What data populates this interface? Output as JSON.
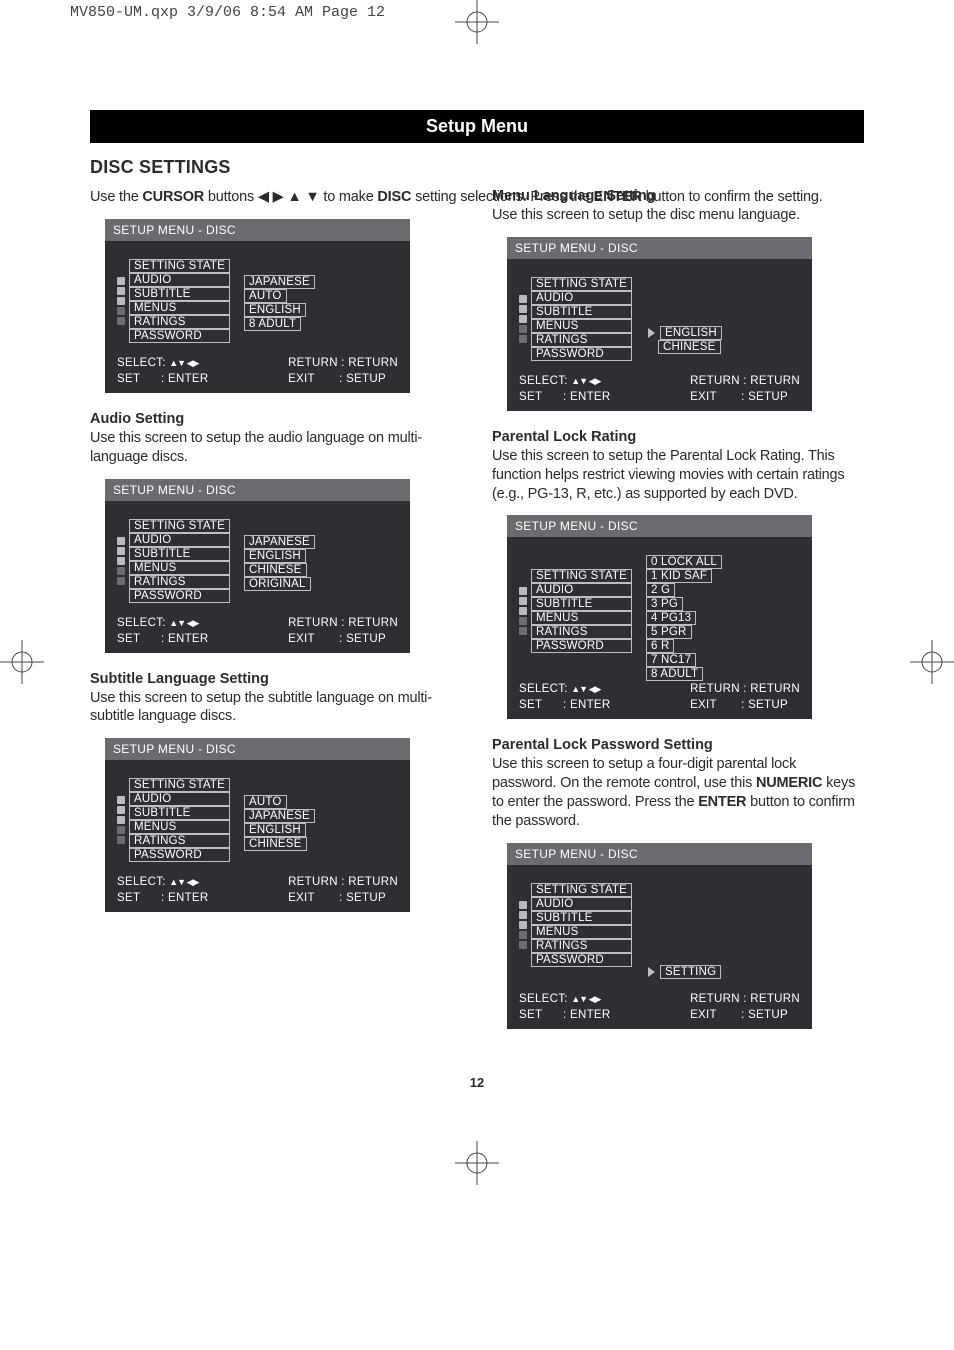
{
  "slug_line": "MV850-UM.qxp  3/9/06  8:54 AM  Page 12",
  "banner_title": "Setup Menu",
  "section_heading": "DISC SETTINGS",
  "intro_html": "Use the <b>CURSOR</b> buttons  ◀ ▶ ▲ ▼  to make <b>DISC</b> setting selections. Press the <b>ENTER</b> button to confirm the setting.",
  "page_number": "12",
  "osd_common": {
    "title": "SETUP MENU - DISC",
    "menu_header": "SETTING STATE",
    "menu_items": [
      "AUDIO",
      "SUBTITLE",
      "MENUS",
      "RATINGS",
      "PASSWORD"
    ],
    "bullet_dark_indices": [
      3,
      4
    ],
    "footer": {
      "select_label": "SELECT:",
      "select_arrows": "▲▼ ◀▶",
      "set_label": "SET",
      "set_value": ": ENTER",
      "return_label": "RETURN : RETURN",
      "exit_label": "EXIT",
      "exit_value": ": SETUP"
    }
  },
  "left": {
    "s1": {
      "values": [
        "JAPANESE",
        "AUTO",
        "ENGLISH",
        "8  ADULT"
      ],
      "values_top_index": 1,
      "arrow_at": null
    },
    "s2": {
      "head": "Audio Setting",
      "para": "Use this screen to setup the audio language on multi-language discs.",
      "values": [
        "JAPANESE",
        "ENGLISH",
        "CHINESE",
        "ORIGINAL"
      ],
      "values_top_index": 1,
      "arrow_at": null
    },
    "s3": {
      "head": "Subtitle Language Setting",
      "para": "Use this screen to setup the subtitle language on multi-subtitle language discs.",
      "values": [
        "AUTO",
        "JAPANESE",
        "ENGLISH",
        "CHINESE"
      ],
      "values_top_index": 1,
      "arrow_at": null
    }
  },
  "right": {
    "s1": {
      "head": "Menu Language Setting",
      "para": "Use this screen to setup the disc menu language.",
      "values": [
        "ENGLISH",
        "CHINESE"
      ],
      "values_top_index": 3,
      "arrow_at": 3
    },
    "s2": {
      "head": "Parental Lock Rating",
      "para": "Use this screen to setup the Parental Lock Rating. This function helps restrict viewing movies with certain ratings (e.g., PG-13, R, etc.) as supported by each DVD.",
      "values": [
        "0 LOCK ALL",
        "1 KID SAF",
        "2 G",
        "3 PG",
        "4 PG13",
        "5 PGR",
        "6 R",
        "7 NC17",
        "8 ADULT"
      ],
      "values_top_index": -1,
      "menu_push_down": true,
      "arrow_at": null,
      "compact_footer": true
    },
    "s3": {
      "head": "Parental Lock Password Setting",
      "para_html": "Use this screen to setup a four-digit parental lock password. On the remote control, use this <b>NUMERIC</b> keys to enter the password. Press the <b>ENTER</b> button to confirm the password.",
      "values": [
        "SETTING"
      ],
      "values_top_index": 5,
      "arrow_at": 5
    }
  },
  "colors": {
    "osd_title_bg": "#6b6a6e",
    "osd_body_bg": "#2f2f33",
    "osd_border": "#bcbec5",
    "bullet_light": "#b9bbc2",
    "bullet_dark": "#6c6c72"
  }
}
